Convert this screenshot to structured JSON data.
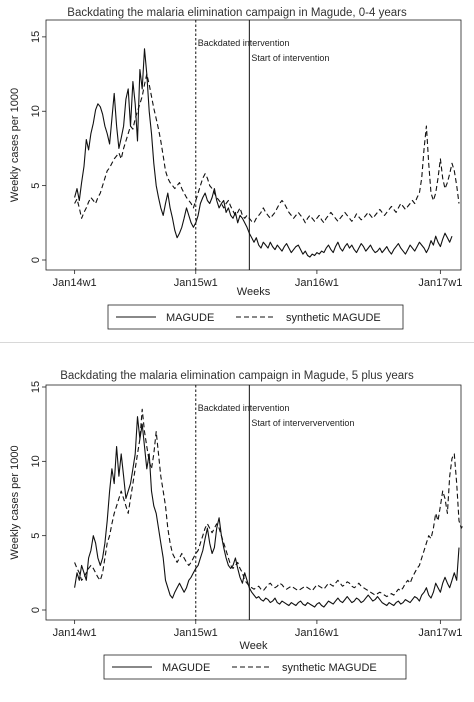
{
  "chart_data": [
    {
      "type": "line",
      "title": "Backdating the malaria elimination campaign in Magude, 0-4 years",
      "xlabel": "Weeks",
      "ylabel": "Weekly cases per 1000",
      "ylim": [
        0,
        16
      ],
      "y_ticks": [
        0,
        5,
        10,
        15
      ],
      "x_ticks": [
        "Jan14w1",
        "Jan15w1",
        "Jan16w1",
        "Jan17w1"
      ],
      "x_tick_index": [
        0,
        52,
        104,
        157
      ],
      "x_range": [
        -8,
        165
      ],
      "grid": false,
      "legend_position": "bottom",
      "vlines": [
        {
          "at": 52,
          "style": "dashed",
          "label": "Backdated intervention"
        },
        {
          "at": 75,
          "style": "solid",
          "label": "Start of intervention"
        }
      ],
      "series": [
        {
          "name": "MAGUDE",
          "style": "solid",
          "values": [
            4.2,
            4.8,
            4.0,
            5.2,
            6.3,
            8.1,
            7.4,
            8.5,
            9.2,
            10.1,
            10.5,
            10.3,
            9.8,
            9.0,
            8.5,
            7.8,
            9.5,
            11.2,
            9.0,
            7.5,
            8.2,
            9.0,
            10.8,
            11.5,
            9.0,
            12.0,
            10.5,
            8.0,
            12.8,
            11.5,
            14.2,
            12.5,
            10.0,
            8.5,
            6.5,
            5.0,
            4.2,
            3.5,
            3.0,
            3.8,
            4.5,
            3.5,
            2.8,
            2.0,
            1.5,
            1.8,
            2.2,
            2.8,
            3.5,
            3.0,
            2.5,
            2.2,
            2.5,
            3.0,
            3.8,
            4.2,
            4.5,
            4.0,
            3.8,
            4.2,
            4.8,
            4.0,
            3.5,
            3.8,
            4.0,
            3.2,
            3.5,
            3.0,
            2.8,
            3.2,
            2.5,
            3.0,
            2.8,
            2.5,
            2.2,
            1.8,
            1.5,
            1.2,
            1.5,
            1.0,
            0.8,
            1.2,
            1.0,
            0.8,
            1.2,
            0.9,
            0.7,
            1.0,
            0.8,
            0.6,
            0.9,
            1.1,
            0.8,
            0.5,
            0.7,
            0.9,
            1.0,
            0.7,
            0.4,
            0.6,
            0.3,
            0.2,
            0.4,
            0.3,
            0.5,
            0.4,
            0.6,
            0.5,
            0.8,
            1.0,
            0.7,
            0.5,
            0.9,
            1.2,
            0.8,
            0.6,
            0.9,
            1.1,
            0.8,
            1.0,
            0.7,
            0.5,
            0.8,
            1.1,
            0.9,
            0.6,
            0.8,
            1.0,
            0.7,
            0.5,
            0.6,
            0.8,
            0.5,
            0.7,
            0.9,
            0.6,
            0.4,
            0.7,
            0.9,
            1.1,
            0.8,
            0.6,
            0.4,
            0.7,
            1.0,
            0.8,
            0.6,
            0.9,
            1.2,
            1.0,
            0.8,
            0.5,
            0.8,
            1.3,
            1.0,
            1.6,
            1.2,
            0.9,
            1.4,
            1.8,
            1.5,
            1.2,
            1.6
          ]
        },
        {
          "name": "synthetic MAGUDE",
          "style": "dashed",
          "values": [
            3.8,
            4.1,
            3.5,
            2.8,
            3.2,
            3.5,
            3.9,
            4.2,
            4.0,
            3.8,
            4.2,
            4.5,
            5.0,
            5.5,
            6.0,
            6.2,
            6.5,
            6.8,
            7.0,
            7.2,
            6.8,
            7.5,
            8.0,
            8.5,
            9.0,
            8.8,
            9.5,
            10.0,
            10.5,
            11.0,
            11.8,
            12.5,
            11.8,
            11.0,
            10.2,
            9.5,
            8.8,
            8.0,
            7.0,
            6.0,
            5.5,
            5.2,
            5.0,
            4.8,
            5.0,
            5.2,
            4.8,
            4.5,
            4.2,
            4.0,
            3.8,
            3.5,
            4.0,
            4.5,
            5.0,
            5.5,
            5.8,
            5.5,
            5.0,
            4.8,
            4.5,
            4.2,
            4.0,
            3.8,
            3.5,
            3.8,
            4.0,
            3.6,
            3.3,
            3.0,
            3.2,
            3.5,
            3.0,
            2.8,
            3.0,
            2.8,
            2.6,
            2.5,
            2.8,
            3.0,
            3.2,
            3.5,
            3.2,
            3.0,
            2.8,
            3.0,
            3.2,
            3.5,
            3.8,
            4.0,
            3.8,
            3.5,
            3.2,
            3.0,
            2.8,
            3.0,
            3.2,
            3.0,
            2.8,
            2.5,
            2.8,
            3.0,
            2.8,
            2.6,
            2.8,
            3.0,
            2.7,
            2.5,
            2.8,
            3.0,
            3.2,
            3.0,
            2.8,
            2.6,
            2.8,
            3.0,
            3.2,
            3.0,
            2.8,
            2.6,
            2.8,
            3.1,
            2.9,
            2.7,
            2.8,
            3.0,
            3.2,
            3.0,
            2.8,
            3.0,
            3.2,
            3.4,
            3.2,
            3.0,
            3.2,
            3.4,
            3.6,
            3.4,
            3.2,
            3.5,
            3.8,
            3.6,
            3.4,
            3.6,
            3.8,
            4.0,
            3.8,
            4.2,
            4.5,
            5.5,
            7.5,
            9.0,
            6.5,
            4.5,
            4.0,
            4.5,
            5.5,
            6.8,
            5.5,
            4.8,
            5.2,
            5.8,
            6.5,
            6.0,
            5.0,
            3.8
          ]
        }
      ]
    },
    {
      "type": "line",
      "title": "Backdating the malaria elimination campaign in Magude, 5 plus years",
      "xlabel": "Week",
      "ylabel": "Weekly cases per 1000",
      "ylim": [
        0,
        15
      ],
      "y_ticks": [
        0,
        5,
        10,
        15
      ],
      "x_ticks": [
        "Jan14w1",
        "Jan15w1",
        "Jan16w1",
        "Jan17w1"
      ],
      "x_tick_index": [
        0,
        52,
        104,
        157
      ],
      "x_range": [
        -8,
        165
      ],
      "grid": false,
      "legend_position": "bottom",
      "vlines": [
        {
          "at": 52,
          "style": "dashed",
          "label": "Backdated intervention"
        },
        {
          "at": 75,
          "style": "solid",
          "label": "Start of interververvention"
        }
      ],
      "series": [
        {
          "name": "MAGUDE",
          "style": "solid",
          "values": [
            1.5,
            2.5,
            2.0,
            3.0,
            2.5,
            2.0,
            3.5,
            4.0,
            5.0,
            4.5,
            3.5,
            3.0,
            3.5,
            4.5,
            6.0,
            8.0,
            9.5,
            8.5,
            11.0,
            9.0,
            10.5,
            9.0,
            7.5,
            8.0,
            8.5,
            9.5,
            10.5,
            13.0,
            11.5,
            12.5,
            11.0,
            9.5,
            10.5,
            8.0,
            7.0,
            6.5,
            5.5,
            4.5,
            3.5,
            2.0,
            1.5,
            1.0,
            0.8,
            1.2,
            1.5,
            1.8,
            1.5,
            1.2,
            1.5,
            2.0,
            2.2,
            2.5,
            2.8,
            3.0,
            3.5,
            4.0,
            4.8,
            5.5,
            4.5,
            3.8,
            4.2,
            5.5,
            6.2,
            5.0,
            4.2,
            3.5,
            3.0,
            2.8,
            3.0,
            3.5,
            2.8,
            2.2,
            1.8,
            2.5,
            2.0,
            1.5,
            1.2,
            1.0,
            0.8,
            0.9,
            0.7,
            0.6,
            0.8,
            0.7,
            0.5,
            0.6,
            0.8,
            0.5,
            0.4,
            0.6,
            0.5,
            0.4,
            0.3,
            0.5,
            0.4,
            0.3,
            0.5,
            0.6,
            0.4,
            0.3,
            0.5,
            0.4,
            0.3,
            0.2,
            0.4,
            0.5,
            0.3,
            0.2,
            0.4,
            0.6,
            0.5,
            0.4,
            0.6,
            0.8,
            0.6,
            0.5,
            0.7,
            0.9,
            0.7,
            0.5,
            0.6,
            0.8,
            0.7,
            0.5,
            0.6,
            0.8,
            1.0,
            0.8,
            0.6,
            0.7,
            0.9,
            0.7,
            0.5,
            0.4,
            0.3,
            0.5,
            0.4,
            0.3,
            0.5,
            0.6,
            0.4,
            0.5,
            0.7,
            0.6,
            0.5,
            0.7,
            0.9,
            0.8,
            0.6,
            1.0,
            1.2,
            1.5,
            1.0,
            0.8,
            1.2,
            1.8,
            1.5,
            1.2,
            1.8,
            2.2,
            1.8,
            1.5,
            2.0,
            2.5,
            2.0,
            4.2
          ]
        },
        {
          "name": "synthetic MAGUDE",
          "style": "dashed",
          "values": [
            3.2,
            2.8,
            2.5,
            2.0,
            2.2,
            2.5,
            2.8,
            3.0,
            2.8,
            2.5,
            2.2,
            2.0,
            2.5,
            3.5,
            4.5,
            5.0,
            5.8,
            6.5,
            7.0,
            7.5,
            8.0,
            7.5,
            7.0,
            6.5,
            7.5,
            8.5,
            9.5,
            10.5,
            11.5,
            13.5,
            12.0,
            11.0,
            10.0,
            9.5,
            10.5,
            12.0,
            10.5,
            9.0,
            8.0,
            7.0,
            5.5,
            4.5,
            3.8,
            3.5,
            3.2,
            3.5,
            3.8,
            3.5,
            3.2,
            3.0,
            3.2,
            3.5,
            3.8,
            4.0,
            4.5,
            5.0,
            5.5,
            5.8,
            5.5,
            5.2,
            5.5,
            5.8,
            5.5,
            5.0,
            4.5,
            4.0,
            3.5,
            3.0,
            2.8,
            3.0,
            3.2,
            2.8,
            2.5,
            2.0,
            1.8,
            1.6,
            1.5,
            1.4,
            1.5,
            1.6,
            1.4,
            1.3,
            1.5,
            1.7,
            1.8,
            1.6,
            1.5,
            1.6,
            1.8,
            1.7,
            1.5,
            1.4,
            1.5,
            1.6,
            1.5,
            1.4,
            1.3,
            1.4,
            1.5,
            1.6,
            1.5,
            1.4,
            1.3,
            1.5,
            1.7,
            1.6,
            1.5,
            1.4,
            1.6,
            1.8,
            1.7,
            1.6,
            1.8,
            2.0,
            1.8,
            1.6,
            1.7,
            1.9,
            1.8,
            1.6,
            1.5,
            1.6,
            1.8,
            1.6,
            1.5,
            1.4,
            1.3,
            1.2,
            1.1,
            1.0,
            1.1,
            1.2,
            1.1,
            1.0,
            0.9,
            1.0,
            1.1,
            1.0,
            1.2,
            1.4,
            1.3,
            1.5,
            1.8,
            2.0,
            1.8,
            2.2,
            2.5,
            2.8,
            3.0,
            3.5,
            4.0,
            4.5,
            5.0,
            4.8,
            5.5,
            6.5,
            6.0,
            7.0,
            8.0,
            7.5,
            6.5,
            9.0,
            10.2,
            10.5,
            8.5,
            6.0,
            5.5,
            5.8
          ]
        }
      ]
    }
  ]
}
